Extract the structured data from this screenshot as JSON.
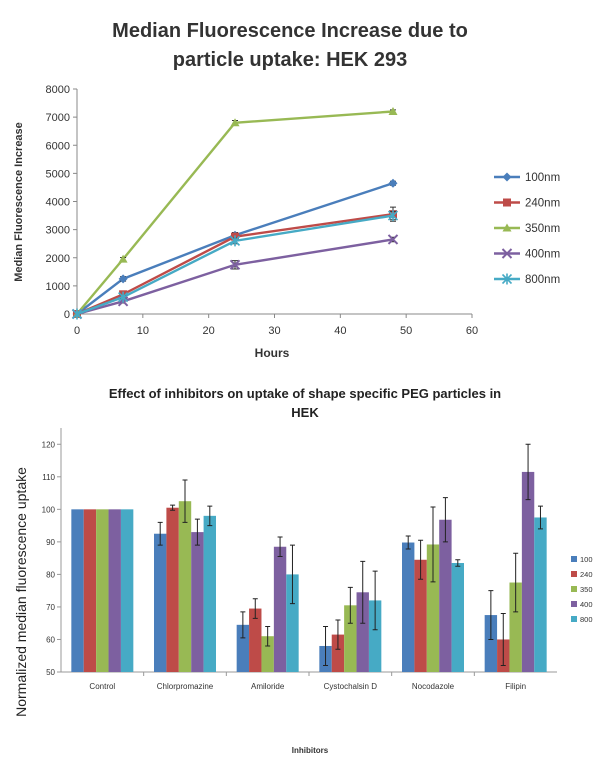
{
  "chart_data": [
    {
      "type": "line",
      "title": "Median Fluorescence Increase due to particle uptake: HEK 293",
      "title_lines": [
        "Median Fluorescence Increase due to",
        "particle uptake: HEK 293"
      ],
      "xlabel": "Hours",
      "ylabel": "Median Fluorescence Increase",
      "xlim": [
        0,
        60
      ],
      "ylim": [
        0,
        8000
      ],
      "xticks": [
        "0",
        "10",
        "20",
        "30",
        "40",
        "50",
        "60"
      ],
      "yticks": [
        "0",
        "1000",
        "2000",
        "3000",
        "4000",
        "5000",
        "6000",
        "7000",
        "8000"
      ],
      "grid": false,
      "legend_position": "right",
      "x": [
        0,
        7,
        24,
        48
      ],
      "series": [
        {
          "name": "100nm",
          "values": [
            0,
            1250,
            2800,
            4650
          ],
          "error": [
            0,
            80,
            100,
            70
          ],
          "color": "#4a7ebb",
          "marker": "diamond"
        },
        {
          "name": "240nm",
          "values": [
            0,
            700,
            2750,
            3550
          ],
          "error": [
            0,
            80,
            120,
            250
          ],
          "color": "#be4b48",
          "marker": "square"
        },
        {
          "name": "350nm",
          "values": [
            0,
            1950,
            6800,
            7200
          ],
          "error": [
            0,
            60,
            80,
            60
          ],
          "color": "#98b954",
          "marker": "triangle"
        },
        {
          "name": "400nm",
          "values": [
            0,
            450,
            1750,
            2650
          ],
          "error": [
            0,
            60,
            150,
            80
          ],
          "color": "#7d60a0",
          "marker": "x"
        },
        {
          "name": "800nm",
          "values": [
            0,
            600,
            2600,
            3500
          ],
          "error": [
            0,
            60,
            100,
            150
          ],
          "color": "#46aac5",
          "marker": "star"
        }
      ]
    },
    {
      "type": "bar",
      "title": "Effect of inhibitors on uptake of shape specific PEG particles in HEK",
      "title_lines": [
        "Effect of inhibitors on uptake of shape specific PEG particles in",
        "HEK"
      ],
      "xlabel": "Inhibitors",
      "ylabel": "Normalized median fluorescence uptake",
      "ylim": [
        50,
        125
      ],
      "yticks": [
        "50",
        "60",
        "70",
        "80",
        "90",
        "100",
        "110",
        "120"
      ],
      "grid": false,
      "legend_position": "right",
      "categories": [
        "Control",
        "Chlorpromazine",
        "Amiloride",
        "Cystochalsin D",
        "Nocodazole",
        "Filipin"
      ],
      "series": [
        {
          "name": "100",
          "values": [
            100,
            92.5,
            64.5,
            58,
            89.8,
            67.5
          ],
          "error": [
            0,
            3.5,
            4,
            6,
            2,
            7.5
          ],
          "color": "#4a7ebb"
        },
        {
          "name": "240",
          "values": [
            100,
            100.5,
            69.5,
            61.5,
            84.5,
            60
          ],
          "error": [
            0,
            0.8,
            3,
            4.5,
            6,
            8
          ],
          "color": "#be4b48"
        },
        {
          "name": "350",
          "values": [
            100,
            102.5,
            61,
            70.5,
            89.2,
            77.5
          ],
          "error": [
            0,
            6.5,
            3,
            5.5,
            11.5,
            9
          ],
          "color": "#98b954"
        },
        {
          "name": "400",
          "values": [
            100,
            93,
            88.5,
            74.5,
            96.8,
            111.5
          ],
          "error": [
            0,
            4,
            3,
            9.5,
            6.8,
            8.5
          ],
          "color": "#7d60a0"
        },
        {
          "name": "800",
          "values": [
            100,
            98,
            80,
            72,
            83.5,
            97.5
          ],
          "error": [
            0,
            3,
            9,
            9,
            1,
            3.5
          ],
          "color": "#46aac5"
        }
      ]
    }
  ]
}
